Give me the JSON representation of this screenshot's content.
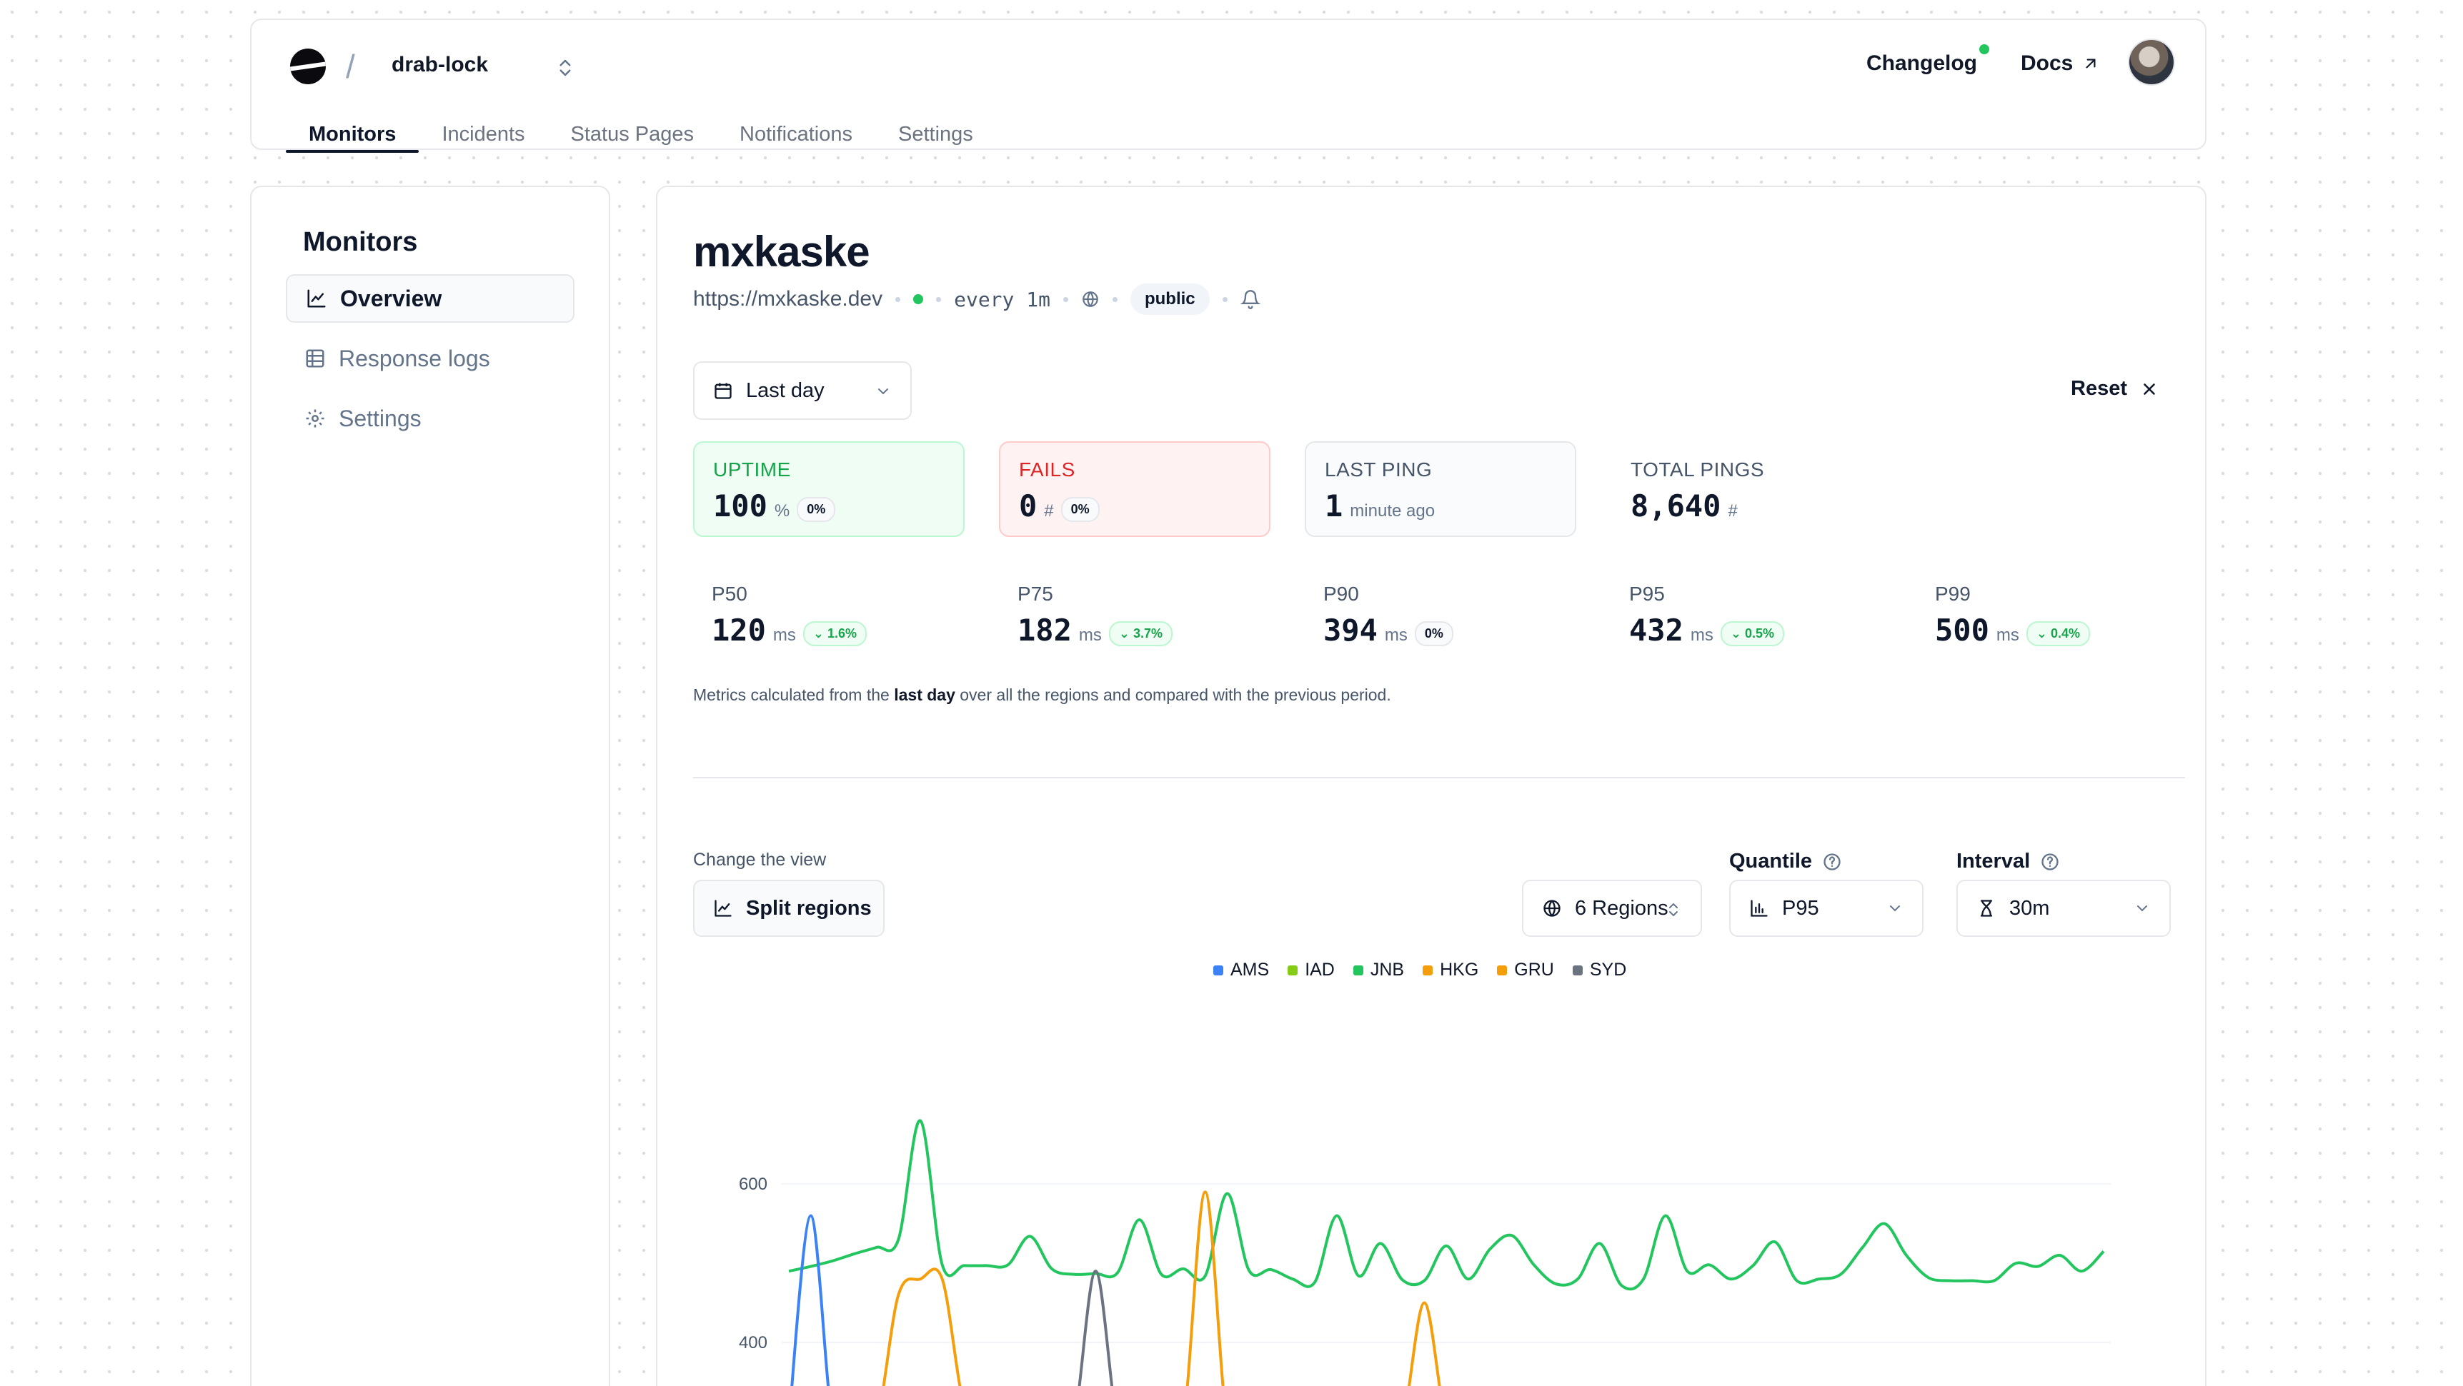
{
  "header": {
    "project": "drab-lock",
    "tabs": [
      {
        "label": "Monitors"
      },
      {
        "label": "Incidents"
      },
      {
        "label": "Status Pages"
      },
      {
        "label": "Notifications"
      },
      {
        "label": "Settings"
      }
    ],
    "changelog_label": "Changelog",
    "docs_label": "Docs"
  },
  "sidebar": {
    "title": "Monitors",
    "items": [
      {
        "label": "Overview"
      },
      {
        "label": "Response logs"
      },
      {
        "label": "Settings"
      }
    ]
  },
  "monitor": {
    "name": "mxkaske",
    "url": "https://mxkaske.dev",
    "frequency": "every 1m",
    "visibility": "public"
  },
  "filters": {
    "period": "Last day",
    "reset_label": "Reset"
  },
  "stats": {
    "uptime": {
      "label": "UPTIME",
      "value": "100",
      "unit": "%",
      "delta": "0%"
    },
    "fails": {
      "label": "FAILS",
      "value": "0",
      "unit": "#",
      "delta": "0%"
    },
    "last_ping": {
      "label": "LAST PING",
      "value": "1",
      "unit": "minute ago"
    },
    "total_pings": {
      "label": "TOTAL PINGS",
      "value": "8,640",
      "unit": "#"
    }
  },
  "quantiles": [
    {
      "label": "P50",
      "value": "120",
      "unit": "ms",
      "delta": "1.6%"
    },
    {
      "label": "P75",
      "value": "182",
      "unit": "ms",
      "delta": "3.7%"
    },
    {
      "label": "P90",
      "value": "394",
      "unit": "ms",
      "delta": "0%"
    },
    {
      "label": "P95",
      "value": "432",
      "unit": "ms",
      "delta": "0.5%"
    },
    {
      "label": "P99",
      "value": "500",
      "unit": "ms",
      "delta": "0.4%"
    }
  ],
  "note": {
    "before": "Metrics calculated from the ",
    "bold": "last day",
    "after": " over all the regions and compared with the previous period."
  },
  "view": {
    "label": "Change the view",
    "button": "Split regions"
  },
  "controls": {
    "regions": "6 Regions",
    "quantile_label": "Quantile",
    "quantile_value": "P95",
    "interval_label": "Interval",
    "interval_value": "30m"
  },
  "chart_data": {
    "type": "line",
    "ytick_labels": [
      "600",
      "400"
    ],
    "y_ticks": [
      600,
      400
    ],
    "ylim": [
      290,
      840
    ],
    "legend_placement": "top-center",
    "grid": true,
    "series": [
      {
        "name": "AMS",
        "color": "#3b82f6"
      },
      {
        "name": "IAD",
        "color": "#84cc16"
      },
      {
        "name": "JNB",
        "color": "#22c55e"
      },
      {
        "name": "HKG",
        "color": "#f59e0b"
      },
      {
        "name": "GRU",
        "color": "#f59e0b"
      },
      {
        "name": "SYD",
        "color": "#6b7280"
      }
    ],
    "visible_series": [
      {
        "name": "JNB",
        "values": [
          490,
          496,
          503,
          512,
          520,
          530,
          680,
          498,
          497,
          497,
          498,
          534,
          493,
          486,
          487,
          488,
          555,
          486,
          493,
          484,
          588,
          491,
          492,
          480,
          476,
          560,
          484,
          525,
          479,
          478,
          522,
          480,
          518,
          535,
          498,
          474,
          480,
          525,
          472,
          480,
          560,
          490,
          498,
          480,
          497,
          527,
          478,
          480,
          486,
          520,
          550,
          510,
          482,
          478,
          478,
          478,
          500,
          496,
          510,
          490,
          515
        ]
      },
      {
        "name": "HKG",
        "values": [
          300,
          310,
          300,
          300,
          300,
          460,
          480,
          480,
          320,
          300,
          300,
          300,
          300,
          300,
          300,
          300,
          300,
          300,
          300,
          590,
          300,
          300,
          300,
          300,
          300,
          300,
          300,
          300,
          300,
          450,
          300,
          300,
          300,
          300,
          300,
          300,
          300,
          300,
          300,
          300,
          300,
          300,
          300,
          300,
          300,
          300,
          300,
          300,
          300,
          300,
          300,
          300,
          300,
          300,
          300,
          300,
          300,
          300,
          300,
          300,
          300
        ]
      },
      {
        "name": "AMS",
        "values": [
          300,
          560,
          300,
          300,
          300,
          300,
          300,
          300,
          300,
          300,
          300,
          300,
          300,
          300,
          300,
          300,
          300,
          300,
          300,
          300,
          300,
          300,
          300,
          300,
          300,
          300,
          300,
          300,
          300,
          300,
          300,
          300,
          300,
          300,
          300,
          300,
          300,
          300,
          300,
          300,
          300,
          300,
          300,
          300,
          300,
          300,
          300,
          300,
          300,
          300,
          300,
          300,
          300,
          300,
          300,
          300,
          300,
          300,
          300,
          300,
          300
        ]
      },
      {
        "name": "SYD",
        "values": [
          300,
          300,
          300,
          300,
          300,
          300,
          300,
          300,
          300,
          300,
          300,
          300,
          300,
          300,
          490,
          300,
          300,
          300,
          300,
          300,
          300,
          300,
          300,
          300,
          300,
          300,
          300,
          300,
          300,
          300,
          300,
          300,
          300,
          300,
          300,
          300,
          300,
          300,
          300,
          300,
          300,
          300,
          300,
          300,
          300,
          300,
          300,
          300,
          300,
          300,
          300,
          300,
          300,
          300,
          300,
          300,
          300,
          300,
          300,
          300,
          300
        ]
      }
    ]
  }
}
